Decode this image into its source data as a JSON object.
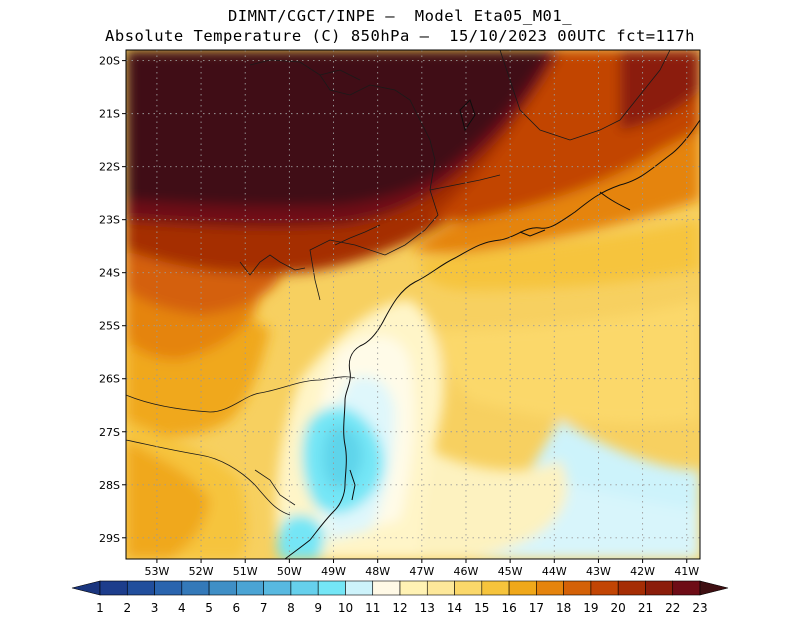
{
  "header": {
    "line1": "DIMNT/CGCT/INPE –  Model Eta05_M01_",
    "line2": "Absolute Temperature (C) 850hPa –  15/10/2023 00UTC fct=117h"
  },
  "map": {
    "lat_range": [
      -29.4,
      -19.8
    ],
    "lon_range": [
      -53.7,
      -40.7
    ],
    "lat_ticks": [
      {
        "value": -20,
        "label": "20S"
      },
      {
        "value": -21,
        "label": "21S"
      },
      {
        "value": -22,
        "label": "22S"
      },
      {
        "value": -23,
        "label": "23S"
      },
      {
        "value": -24,
        "label": "24S"
      },
      {
        "value": -25,
        "label": "25S"
      },
      {
        "value": -26,
        "label": "26S"
      },
      {
        "value": -27,
        "label": "27S"
      },
      {
        "value": -28,
        "label": "28S"
      },
      {
        "value": -29,
        "label": "29S"
      }
    ],
    "lon_ticks": [
      {
        "value": -53,
        "label": "53W"
      },
      {
        "value": -52,
        "label": "52W"
      },
      {
        "value": -51,
        "label": "51W"
      },
      {
        "value": -50,
        "label": "50W"
      },
      {
        "value": -49,
        "label": "49W"
      },
      {
        "value": -48,
        "label": "48W"
      },
      {
        "value": -47,
        "label": "47W"
      },
      {
        "value": -46,
        "label": "46W"
      },
      {
        "value": -45,
        "label": "45W"
      },
      {
        "value": -44,
        "label": "44W"
      },
      {
        "value": -43,
        "label": "43W"
      },
      {
        "value": -42,
        "label": "42W"
      },
      {
        "value": -41,
        "label": "41W"
      }
    ],
    "grid": true
  },
  "colorbar": {
    "labels": [
      "1",
      "2",
      "3",
      "4",
      "5",
      "6",
      "7",
      "8",
      "9",
      "10",
      "11",
      "12",
      "13",
      "14",
      "15",
      "16",
      "17",
      "18",
      "19",
      "20",
      "21",
      "22",
      "23"
    ],
    "colors": [
      "#1d3d8c",
      "#214e9c",
      "#2a64ae",
      "#3479b9",
      "#3f8fc6",
      "#4ba4d4",
      "#58b9e0",
      "#66d0ec",
      "#74e6f6",
      "#cdf3fb",
      "#fff9e6",
      "#fff2b4",
      "#fde89a",
      "#fbd86a",
      "#f6c43c",
      "#f0a81a",
      "#e5840d",
      "#d46107",
      "#c24504",
      "#a52d04",
      "#8b1d0a",
      "#6e0c16",
      "#3f0f12"
    ],
    "end_left_color": "#1a357e",
    "end_right_color": "#3f0f12"
  }
}
